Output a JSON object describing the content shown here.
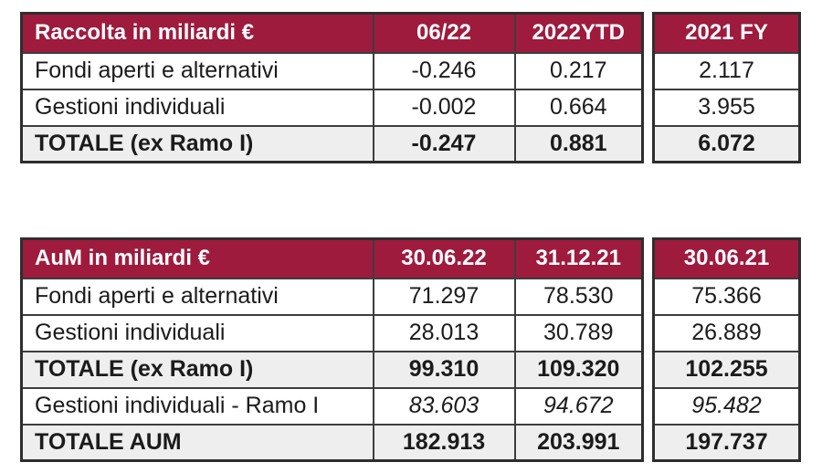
{
  "colors": {
    "header_bg": "#9e1b3e",
    "header_text": "#ffffff",
    "total_row_bg": "#efeeee",
    "border": "#3d3d3d",
    "text": "#1b1b1b"
  },
  "tables": [
    {
      "id": "raccolta",
      "title": "Raccolta in miliardi €",
      "columns": [
        "06/22",
        "2022YTD",
        "2021 FY"
      ],
      "rows": [
        {
          "label": "Fondi aperti e alternativi",
          "values": [
            "-0.246",
            "0.217",
            "2.117"
          ],
          "style": "normal"
        },
        {
          "label": "Gestioni individuali",
          "values": [
            "-0.002",
            "0.664",
            "3.955"
          ],
          "style": "normal"
        },
        {
          "label": "TOTALE (ex Ramo I)",
          "values": [
            "-0.247",
            "0.881",
            "6.072"
          ],
          "style": "total"
        }
      ]
    },
    {
      "id": "aum",
      "title": "AuM in miliardi €",
      "columns": [
        "30.06.22",
        "31.12.21",
        "30.06.21"
      ],
      "rows": [
        {
          "label": "Fondi aperti e alternativi",
          "values": [
            "71.297",
            "78.530",
            "75.366"
          ],
          "style": "normal"
        },
        {
          "label": "Gestioni individuali",
          "values": [
            "28.013",
            "30.789",
            "26.889"
          ],
          "style": "normal"
        },
        {
          "label": "TOTALE (ex Ramo I)",
          "values": [
            "99.310",
            "109.320",
            "102.255"
          ],
          "style": "total"
        },
        {
          "label": "Gestioni individuali - Ramo I",
          "values": [
            "83.603",
            "94.672",
            "95.482"
          ],
          "style": "italic-values"
        },
        {
          "label": "TOTALE AUM",
          "values": [
            "182.913",
            "203.991",
            "197.737"
          ],
          "style": "total"
        }
      ]
    }
  ],
  "chart_data": [
    {
      "type": "table",
      "title": "Raccolta in miliardi €",
      "categories": [
        "06/22",
        "2022YTD",
        "2021 FY"
      ],
      "series": [
        {
          "name": "Fondi aperti e alternativi",
          "values": [
            -0.246,
            0.217,
            2.117
          ]
        },
        {
          "name": "Gestioni individuali",
          "values": [
            -0.002,
            0.664,
            3.955
          ]
        },
        {
          "name": "TOTALE (ex Ramo I)",
          "values": [
            -0.247,
            0.881,
            6.072
          ]
        }
      ]
    },
    {
      "type": "table",
      "title": "AuM in miliardi €",
      "categories": [
        "30.06.22",
        "31.12.21",
        "30.06.21"
      ],
      "series": [
        {
          "name": "Fondi aperti e alternativi",
          "values": [
            71.297,
            78.53,
            75.366
          ]
        },
        {
          "name": "Gestioni individuali",
          "values": [
            28.013,
            30.789,
            26.889
          ]
        },
        {
          "name": "TOTALE (ex Ramo I)",
          "values": [
            99.31,
            109.32,
            102.255
          ]
        },
        {
          "name": "Gestioni individuali - Ramo I",
          "values": [
            83.603,
            94.672,
            95.482
          ]
        },
        {
          "name": "TOTALE AUM",
          "values": [
            182.913,
            203.991,
            197.737
          ]
        }
      ]
    }
  ]
}
